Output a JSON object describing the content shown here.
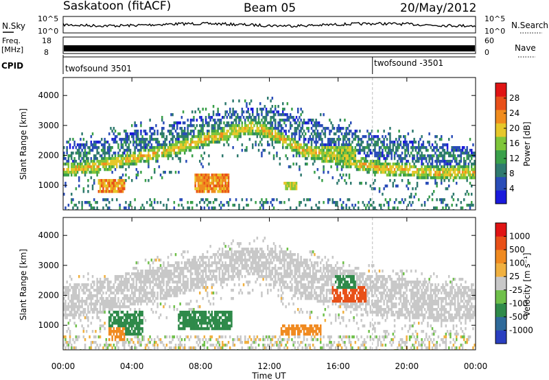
{
  "header": {
    "station": "Saskatoon (fitACF)",
    "beam": "Beam 05",
    "date": "20/May/2012"
  },
  "top_panels": {
    "nsky": {
      "label": "N.Sky",
      "ticks": [
        "10^5",
        "10^0"
      ]
    },
    "nsearch": {
      "label": "N.Search",
      "ticks": [
        "10^5",
        "10^0"
      ]
    },
    "freq": {
      "label_line1": "Freq.",
      "label_line2": "[MHz]",
      "ticks": [
        "18",
        "8"
      ]
    },
    "nave": {
      "label": "Nave",
      "ticks": [
        "60",
        "0"
      ]
    },
    "cpid": {
      "label": "CPID",
      "segments": [
        {
          "name": "twofsound 3501",
          "start_hour": 0
        },
        {
          "name": "twofsound -3501",
          "start_hour": 18
        }
      ]
    }
  },
  "chart_data": [
    {
      "type": "heatmap",
      "panel": "power",
      "ylabel": "Slant Range [km]",
      "xlabel": "",
      "ylim": [
        180,
        4600
      ],
      "xlim": [
        0,
        24
      ],
      "y_ticks": [
        "1000",
        "2000",
        "3000",
        "4000"
      ],
      "y_tick_values": [
        1000,
        2000,
        3000,
        4000
      ],
      "colorbar": {
        "label": "Power [dB]",
        "ticks": [
          "4",
          "8",
          "12",
          "16",
          "20",
          "24",
          "28"
        ],
        "tick_values": [
          4,
          8,
          12,
          16,
          20,
          24,
          28
        ],
        "range": [
          0,
          32
        ],
        "colors": [
          "#1a1adc",
          "#2a4db8",
          "#2f7a6f",
          "#3aa04a",
          "#7fc63a",
          "#e6c72a",
          "#f08c1e",
          "#e8501a",
          "#e01414"
        ]
      },
      "bands": [
        {
          "name": "main-echo-band",
          "value_db": 18,
          "points": [
            [
              0,
              1550
            ],
            [
              2,
              1700
            ],
            [
              4,
              1950
            ],
            [
              6,
              2200
            ],
            [
              8,
              2550
            ],
            [
              10,
              2850
            ],
            [
              11,
              3000
            ],
            [
              12,
              2800
            ],
            [
              14,
              2200
            ],
            [
              16,
              1950
            ],
            [
              18,
              1650
            ],
            [
              20,
              1550
            ],
            [
              22,
              1450
            ],
            [
              24,
              1500
            ]
          ]
        },
        {
          "name": "upper-echo-band",
          "value_db": 12,
          "points": [
            [
              0,
              2000
            ],
            [
              2,
              2150
            ],
            [
              4,
              2450
            ],
            [
              6,
              2700
            ],
            [
              8,
              2950
            ],
            [
              10,
              3200
            ],
            [
              12,
              3300
            ],
            [
              14,
              2900
            ],
            [
              16,
              2600
            ],
            [
              18,
              2350
            ],
            [
              20,
              2200
            ],
            [
              22,
              2050
            ],
            [
              24,
              1900
            ]
          ]
        }
      ],
      "patches": [
        {
          "name": "strong-echo-0230",
          "t": [
            2.0,
            3.6
          ],
          "r": [
            800,
            1300
          ],
          "value_db": 28
        },
        {
          "name": "strong-echo-0830",
          "t": [
            7.6,
            9.6
          ],
          "r": [
            800,
            1400
          ],
          "value_db": 28
        },
        {
          "name": "echo-1300",
          "t": [
            12.8,
            13.6
          ],
          "r": [
            850,
            1150
          ],
          "value_db": 22
        },
        {
          "name": "echo-1530",
          "t": [
            15.0,
            17.0
          ],
          "r": [
            1850,
            2400
          ],
          "value_db": 20
        }
      ]
    },
    {
      "type": "heatmap",
      "panel": "velocity",
      "ylabel": "Slant Range [km]",
      "xlabel": "Time UT",
      "ylim": [
        180,
        4600
      ],
      "xlim": [
        0,
        24
      ],
      "y_ticks": [
        "1000",
        "2000",
        "3000",
        "4000"
      ],
      "y_tick_values": [
        1000,
        2000,
        3000,
        4000
      ],
      "x_ticks": [
        "00:00",
        "04:00",
        "08:00",
        "12:00",
        "16:00",
        "20:00",
        "00:00"
      ],
      "x_tick_values": [
        0,
        4,
        8,
        12,
        16,
        20,
        24
      ],
      "colorbar": {
        "label": "Velocity [m s⁻¹]",
        "ticks": [
          "1000",
          "500",
          "100",
          "25",
          "-25",
          "-100",
          "-500",
          "-1000"
        ],
        "colors": [
          "#2a3fc0",
          "#2f6a9a",
          "#2f8a4a",
          "#6fc04a",
          "#c8c8c8",
          "#f0b040",
          "#f08a20",
          "#e85018",
          "#e01414"
        ]
      },
      "patches": [
        {
          "name": "positive-velocity-0330",
          "t": [
            2.6,
            4.6
          ],
          "r": [
            700,
            1500
          ],
          "velocity": 100
        },
        {
          "name": "positive-velocity-0800",
          "t": [
            6.6,
            9.8
          ],
          "r": [
            900,
            1500
          ],
          "velocity": 100
        },
        {
          "name": "negative-velocity-0330",
          "t": [
            2.6,
            3.6
          ],
          "r": [
            500,
            1000
          ],
          "velocity": -100
        },
        {
          "name": "negative-velocity-1300",
          "t": [
            12.6,
            15.0
          ],
          "r": [
            700,
            1100
          ],
          "velocity": -100
        },
        {
          "name": "negative-velocity-1630",
          "t": [
            15.6,
            17.6
          ],
          "r": [
            1800,
            2400
          ],
          "velocity": -500
        },
        {
          "name": "positive-velocity-1630",
          "t": [
            15.8,
            17.0
          ],
          "r": [
            2300,
            2700
          ],
          "velocity": 100
        }
      ]
    }
  ]
}
